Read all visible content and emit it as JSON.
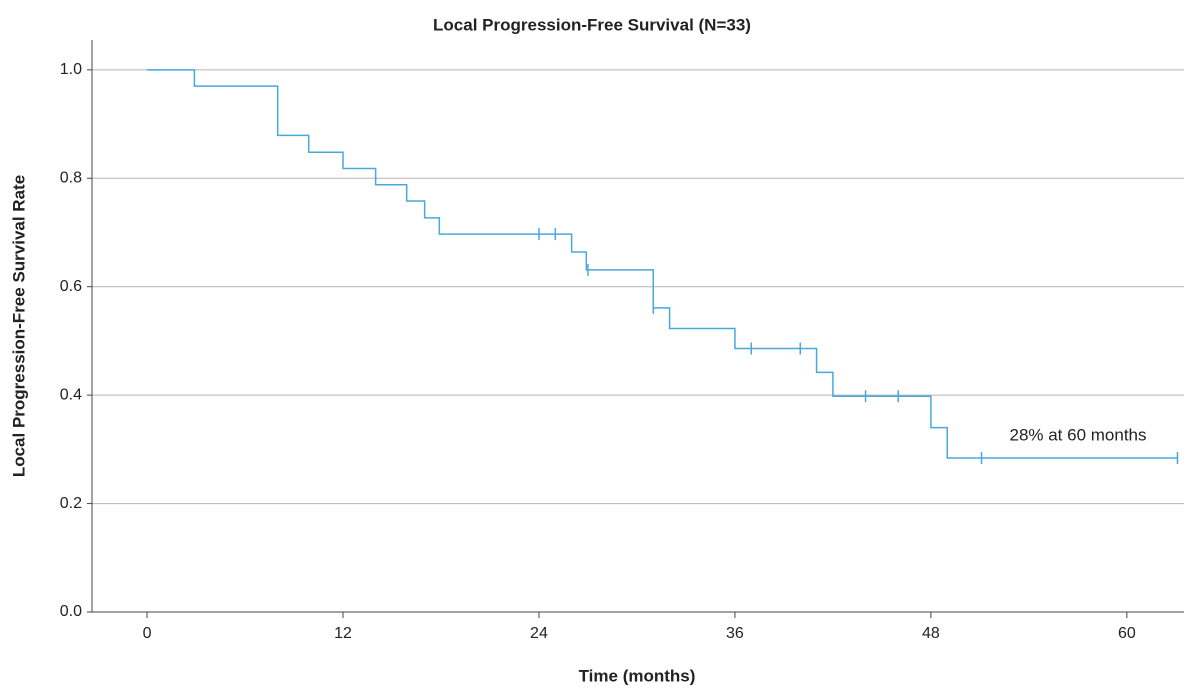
{
  "chart_data": {
    "type": "step",
    "title": "Local Progression-Free Survival (N=33)",
    "x_label": "Time (months)",
    "y_label": "Local Progression-Free Survival Rate",
    "annotation": "28% at 60 months",
    "xlim": [
      -3.37,
      63.5
    ],
    "ylim": [
      0,
      1.055
    ],
    "xticks": [
      0,
      12,
      24,
      36,
      48,
      60
    ],
    "yticks": [
      {
        "value": 0,
        "label": "0.0"
      },
      0.2,
      0.4,
      0.6,
      0.8,
      {
        "value": 1,
        "label": "1.0"
      }
    ],
    "grid": true,
    "series": [
      {
        "color": "#4aa8dc",
        "x": [
          0,
          2.9,
          8.0,
          9.9,
          12.0,
          14.0,
          15.9,
          17.0,
          17.9,
          26.0,
          26.9,
          31.0,
          32.0,
          36.0,
          41.0,
          42.0,
          48.0,
          49.0,
          63.1
        ],
        "values": [
          1.0,
          0.97,
          0.879,
          0.848,
          0.818,
          0.788,
          0.758,
          0.727,
          0.697,
          0.664,
          0.631,
          0.561,
          0.523,
          0.486,
          0.442,
          0.398,
          0.34,
          0.284,
          0.284
        ],
        "censored_x": [
          24.0,
          25.0,
          27.0,
          31.0,
          37.0,
          40.0,
          44.0,
          46.0,
          51.1,
          63.1
        ],
        "censored_values": [
          0.697,
          0.697,
          0.631,
          0.561,
          0.486,
          0.486,
          0.398,
          0.398,
          0.284,
          0.284
        ]
      }
    ]
  }
}
